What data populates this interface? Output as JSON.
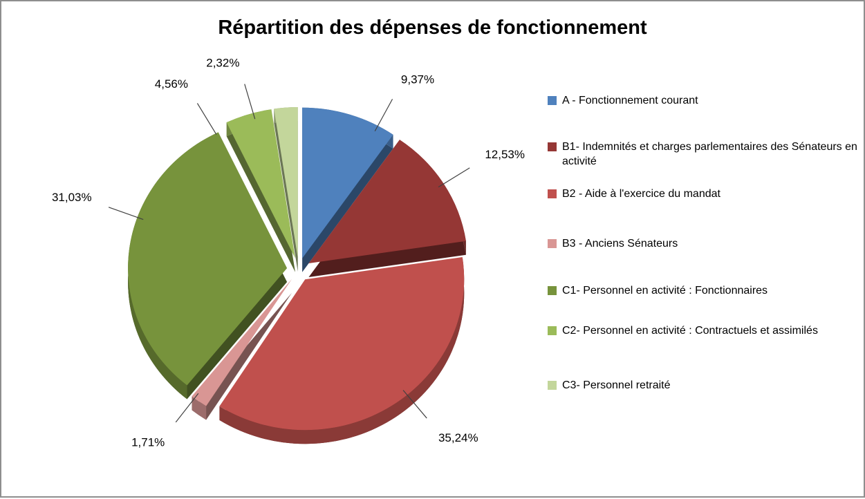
{
  "title": "Répartition des dépenses de fonctionnement",
  "chart_data": {
    "type": "pie",
    "title": "Répartition des dépenses de fonctionnement",
    "style": "3d-exploded-pie",
    "legend_position": "right",
    "start_angle_deg": 0,
    "direction": "clockwise",
    "background_color": "#ffffff",
    "slices": [
      {
        "name": "A - Fonctionnement courant",
        "value": 9.37,
        "display_label": "9,37%",
        "color": "#4F81BD"
      },
      {
        "name": "B1- Indemnités et charges parlementaires des Sénateurs en activité",
        "value": 12.53,
        "display_label": "12,53%",
        "color": "#953735"
      },
      {
        "name": "B2 - Aide à l'exercice du mandat",
        "value": 35.24,
        "display_label": "35,24%",
        "color": "#C0504D"
      },
      {
        "name": "B3 - Anciens Sénateurs",
        "value": 1.71,
        "display_label": "1,71%",
        "color": "#D99694"
      },
      {
        "name": "C1- Personnel en activité : Fonctionnaires",
        "value": 31.03,
        "display_label": "31,03%",
        "color": "#77933C"
      },
      {
        "name": "C2- Personnel en activité : Contractuels et assimilés",
        "value": 4.56,
        "display_label": "4,56%",
        "color": "#9BBB59"
      },
      {
        "name": "C3- Personnel retraité",
        "value": 2.32,
        "display_label": "2,32%",
        "color": "#C3D69B"
      }
    ]
  }
}
